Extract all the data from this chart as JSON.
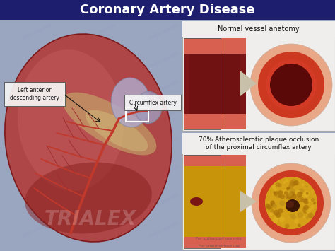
{
  "title": "Coronary Artery Disease",
  "title_fontsize": 13,
  "bg_color": "#9aa5c0",
  "header_bg": "#1e1e6e",
  "label_normal": "Normal vessel anatomy",
  "label_70pct": "70% Atherosclerotic plaque occlusion\nof the proximal circumflex artery",
  "label_left_anterior": "Left anterior\ndescending artery",
  "label_circumflex": "Circumflex artery",
  "white": "#ffffff",
  "artery_red": "#c0392b",
  "panel_bg_top": "#c8c0b8",
  "panel_bg_bot": "#b8b0a8",
  "normal_outer": "#e8a08a",
  "normal_wall": "#d04030",
  "normal_lumen": "#6a0808",
  "plaque_color": "#d4a017",
  "plaque_lumen": "#4a2005",
  "panel_white": "#f0eeec",
  "label_box": "#ffffff"
}
